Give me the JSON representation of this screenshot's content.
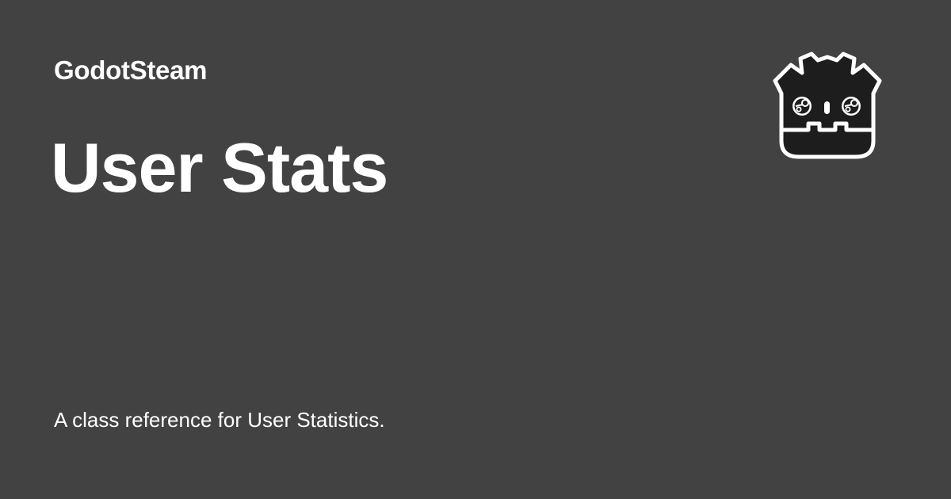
{
  "site": {
    "name": "GodotSteam"
  },
  "page": {
    "title": "User Stats",
    "description": "A class reference for User Statistics."
  },
  "logo": {
    "icon": "godot-steam-robot-logo"
  },
  "colors": {
    "background": "#424242",
    "text": "#ffffff",
    "logo_fill": "#1d1d1d",
    "logo_outline": "#ffffff"
  }
}
